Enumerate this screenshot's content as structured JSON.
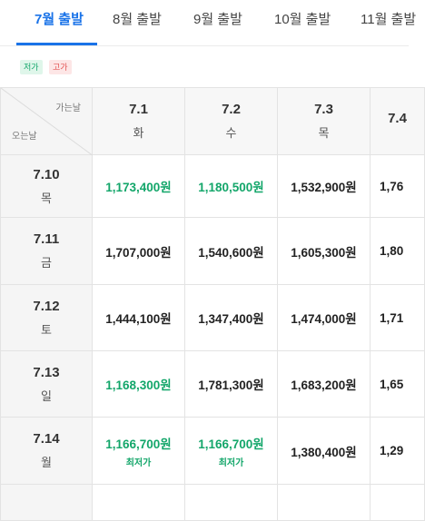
{
  "tabs": [
    {
      "label": "7월 출발",
      "active": true
    },
    {
      "label": "8월 출발",
      "active": false
    },
    {
      "label": "9월 출발",
      "active": false
    },
    {
      "label": "10월 출발",
      "active": false
    },
    {
      "label": "11월 출발",
      "active": false
    }
  ],
  "legend": {
    "low": "저가",
    "high": "고가"
  },
  "corner": {
    "departure_label": "가는날",
    "return_label": "오는날"
  },
  "departures": [
    {
      "date": "7.1",
      "dow": "화"
    },
    {
      "date": "7.2",
      "dow": "수"
    },
    {
      "date": "7.3",
      "dow": "목"
    },
    {
      "date": "7.4",
      "dow": ""
    }
  ],
  "returns": [
    {
      "date": "7.10",
      "dow": "목",
      "prices": [
        {
          "amount": "1,173,400원",
          "low": true,
          "note": ""
        },
        {
          "amount": "1,180,500원",
          "low": true,
          "note": ""
        },
        {
          "amount": "1,532,900원",
          "low": false,
          "note": ""
        },
        {
          "amount": "1,76",
          "low": false,
          "note": ""
        }
      ]
    },
    {
      "date": "7.11",
      "dow": "금",
      "prices": [
        {
          "amount": "1,707,000원",
          "low": false,
          "note": ""
        },
        {
          "amount": "1,540,600원",
          "low": false,
          "note": ""
        },
        {
          "amount": "1,605,300원",
          "low": false,
          "note": ""
        },
        {
          "amount": "1,80",
          "low": false,
          "note": ""
        }
      ]
    },
    {
      "date": "7.12",
      "dow": "토",
      "prices": [
        {
          "amount": "1,444,100원",
          "low": false,
          "note": ""
        },
        {
          "amount": "1,347,400원",
          "low": false,
          "note": ""
        },
        {
          "amount": "1,474,000원",
          "low": false,
          "note": ""
        },
        {
          "amount": "1,71",
          "low": false,
          "note": ""
        }
      ]
    },
    {
      "date": "7.13",
      "dow": "일",
      "prices": [
        {
          "amount": "1,168,300원",
          "low": true,
          "note": ""
        },
        {
          "amount": "1,781,300원",
          "low": false,
          "note": ""
        },
        {
          "amount": "1,683,200원",
          "low": false,
          "note": ""
        },
        {
          "amount": "1,65",
          "low": false,
          "note": ""
        }
      ]
    },
    {
      "date": "7.14",
      "dow": "월",
      "prices": [
        {
          "amount": "1,166,700원",
          "low": true,
          "note": "최저가"
        },
        {
          "amount": "1,166,700원",
          "low": true,
          "note": "최저가"
        },
        {
          "amount": "1,380,400원",
          "low": false,
          "note": ""
        },
        {
          "amount": "1,29",
          "low": false,
          "note": ""
        }
      ]
    }
  ],
  "colors": {
    "accent": "#1a73e8",
    "low_price": "#13a66a",
    "high_price": "#e35555"
  }
}
